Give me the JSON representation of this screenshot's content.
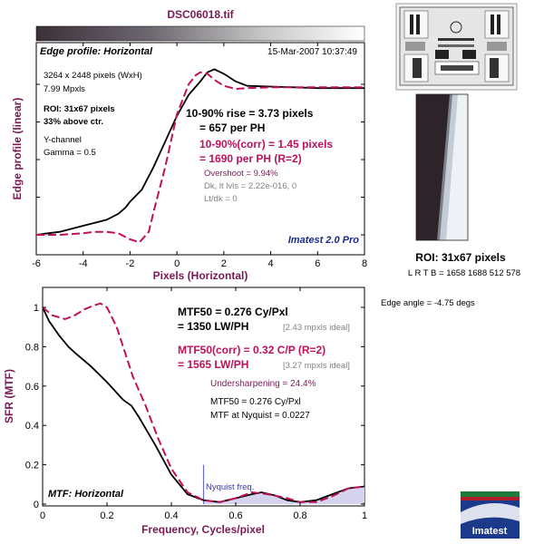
{
  "title": "DSC06018.tif",
  "edge": {
    "panel_label": "Edge profile: Horizontal",
    "timestamp": "15-Mar-2007 10:37:49",
    "info": [
      "3264 x 2448 pixels (WxH)",
      "7.99 Mpxls"
    ],
    "roi_info": [
      "ROI: 31x67 pixels",
      "33% above ctr."
    ],
    "channel_info": [
      "Y-channel",
      "Gamma = 0.5"
    ],
    "rise_lines": [
      "10-90% rise = 3.73 pixels",
      "= 657 per PH"
    ],
    "corr_lines": [
      "10-90%(corr) = 1.45 pixels",
      "= 1690 per PH  (R=2)"
    ],
    "overshoot": "Overshoot = 9.94%",
    "dk_levels": "Dk, lt lvls = 2.22e-016, 0",
    "lt_dk": "Lt/dk = 0",
    "watermark": "Imatest 2.0 Pro",
    "ylabel": "Edge profile (linear)",
    "xlabel": "Pixels (Horizontal)"
  },
  "mtf": {
    "panel_label": "MTF: Horizontal",
    "mtf50_lines": [
      "MTF50 = 0.276 Cy/Pxl",
      "= 1350 LW/PH"
    ],
    "mtf50_ideal": "[2.43 mpxls ideal]",
    "corr_lines": [
      "MTF50(corr) = 0.32 C/P  (R=2)",
      "= 1565 LW/PH"
    ],
    "corr_ideal": "[3.27 mpxls ideal]",
    "undersharpening": "Undersharpening = 24.4%",
    "mtf50_repeat": "MTF50 = 0.276 Cy/Pxl",
    "nyquist_value": "MTF at Nyquist = 0.0227",
    "nyquist_label": "Nyquist freq.",
    "ylabel": "SFR (MTF)",
    "xlabel": "Frequency, Cycles/pixel"
  },
  "side": {
    "roi_title": "ROI: 31x67 pixels",
    "roi_coords": "L R  T B = 1658 1688  512 578",
    "edge_angle": "Edge angle = -4.75 degs",
    "logo_text": "Imatest"
  },
  "colors": {
    "raw": "#000000",
    "corrected": "#c0105a",
    "frame": "#000000",
    "nyquist": "#6a6acd",
    "fill": "#d4d4ee"
  },
  "chart_data": [
    {
      "type": "line",
      "xlim": [
        -6,
        8
      ],
      "xticks": [
        -6,
        -4,
        -2,
        0,
        2,
        4,
        6,
        8
      ],
      "grid": false,
      "series": [
        {
          "x": [
            -6,
            -5.5,
            -5,
            -4.5,
            -4,
            -3.5,
            -3,
            -2.5,
            -2.2,
            -2,
            -1.5,
            -1,
            -0.5,
            0,
            0.5,
            1,
            1.3,
            1.6,
            2,
            2.5,
            3,
            4,
            5,
            6,
            7,
            8
          ],
          "y": [
            0,
            0.01,
            0.02,
            0.04,
            0.06,
            0.08,
            0.1,
            0.14,
            0.18,
            0.22,
            0.3,
            0.45,
            0.62,
            0.79,
            0.93,
            1.02,
            1.08,
            1.1,
            1.07,
            1.02,
            0.99,
            0.985,
            0.98,
            0.975,
            0.975,
            0.975
          ]
        },
        {
          "x": [
            -6,
            -5,
            -4,
            -3.5,
            -3,
            -2.5,
            -2,
            -1.6,
            -1.2,
            -1,
            -0.5,
            0,
            0.5,
            0.8,
            1,
            1.3,
            1.6,
            2,
            2.5,
            3,
            4,
            5,
            6,
            7,
            8
          ],
          "y": [
            0,
            0,
            0.01,
            0.02,
            0.02,
            0.01,
            -0.03,
            -0.05,
            0.02,
            0.15,
            0.45,
            0.8,
            1.0,
            1.06,
            1.08,
            1.07,
            1.03,
            0.99,
            0.97,
            0.975,
            0.98,
            0.98,
            0.98,
            0.98,
            0.98
          ]
        }
      ]
    },
    {
      "type": "line",
      "xlim": [
        0,
        1
      ],
      "ylim": [
        0,
        1
      ],
      "xticks": [
        0,
        0.2,
        0.4,
        0.6,
        0.8,
        1
      ],
      "yticks": [
        0,
        0.2,
        0.4,
        0.6,
        0.8,
        1
      ],
      "nyquist_x": 0.5,
      "grid": false,
      "series": [
        {
          "x": [
            0,
            0.02,
            0.05,
            0.08,
            0.1,
            0.15,
            0.2,
            0.25,
            0.276,
            0.3,
            0.35,
            0.4,
            0.45,
            0.5,
            0.55,
            0.6,
            0.65,
            0.68,
            0.72,
            0.76,
            0.8,
            0.85,
            0.9,
            0.95,
            1
          ],
          "y": [
            1,
            0.93,
            0.86,
            0.8,
            0.77,
            0.7,
            0.62,
            0.53,
            0.5,
            0.44,
            0.3,
            0.15,
            0.05,
            0.02,
            0.01,
            0.03,
            0.05,
            0.06,
            0.045,
            0.02,
            0.01,
            0.02,
            0.05,
            0.08,
            0.09
          ]
        },
        {
          "x": [
            0,
            0.03,
            0.07,
            0.1,
            0.13,
            0.16,
            0.18,
            0.2,
            0.23,
            0.25,
            0.28,
            0.32,
            0.36,
            0.4,
            0.45,
            0.5,
            0.55,
            0.6,
            0.65,
            0.7,
            0.76,
            0.8,
            0.85,
            0.9,
            0.95,
            1
          ],
          "y": [
            1,
            0.96,
            0.94,
            0.96,
            0.99,
            1.01,
            1.02,
            1.0,
            0.9,
            0.8,
            0.65,
            0.5,
            0.33,
            0.18,
            0.06,
            0.02,
            0.01,
            0.03,
            0.06,
            0.05,
            0.03,
            0.01,
            0.01,
            0.04,
            0.08,
            0.09
          ]
        }
      ]
    }
  ]
}
